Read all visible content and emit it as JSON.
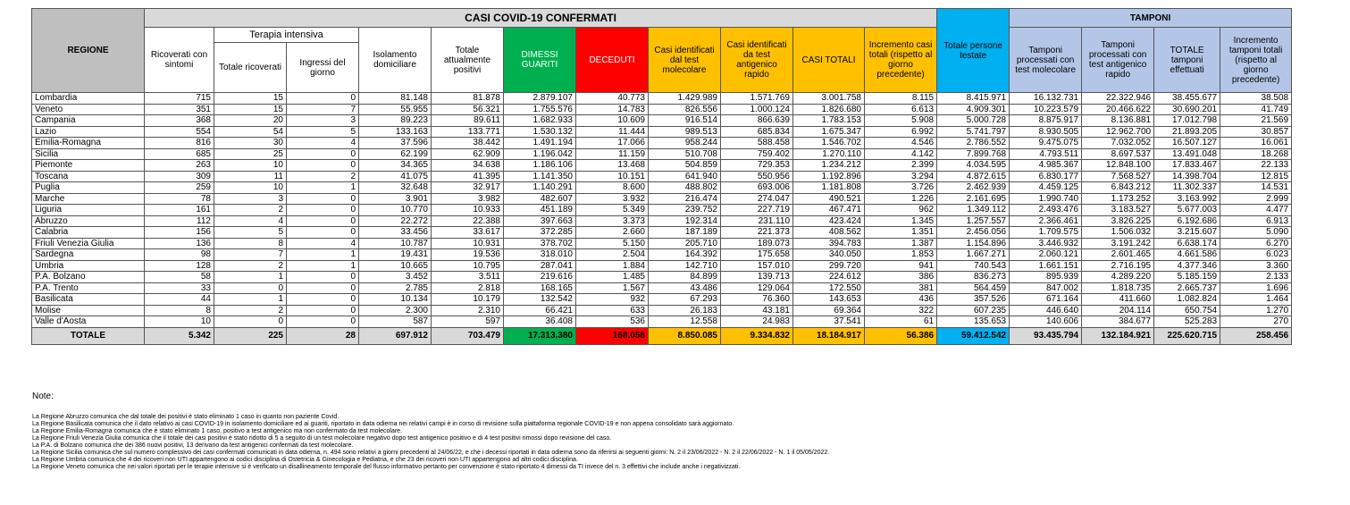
{
  "header": {
    "title": "CASI COVID-19 CONFERMATI",
    "tamponi": "TAMPONI",
    "regione": "REGIONE",
    "ricoverati": "Ricoverati con sintomi",
    "terapia": "Terapia intensiva",
    "totale_ricoverati": "Totale ricoverati",
    "ingressi": "Ingressi del giorno",
    "isolamento": "Isolamento domiciliare",
    "attualmente": "Totale attualmente positivi",
    "dimessi": "DIMESSI GUARITI",
    "deceduti": "DECEDUTI",
    "casi_molecolare": "Casi identificati dal test molecolare",
    "casi_antigenico": "Casi identificati da test antigenico rapido",
    "casi_totali": "CASI TOTALI",
    "incremento": "Incremento casi totali (rispetto al giorno precedente)",
    "persone_testate": "Totale persone testate",
    "tamp_molecolare": "Tamponi processati con test molecolare",
    "tamp_antigenico": "Tamponi processati con test antigenico rapido",
    "tamp_totale": "TOTALE tamponi effettuati",
    "tamp_incremento": "Incremento tamponi totali (rispetto al giorno precedente)"
  },
  "rows": [
    [
      "Lombardia",
      "715",
      "15",
      "0",
      "81.148",
      "81.878",
      "2.879.107",
      "40.773",
      "1.429.989",
      "1.571.769",
      "3.001.758",
      "8.115",
      "8.415.971",
      "16.132.731",
      "22.322.946",
      "38.455.677",
      "38.508"
    ],
    [
      "Veneto",
      "351",
      "15",
      "7",
      "55.955",
      "56.321",
      "1.755.576",
      "14.783",
      "826.556",
      "1.000.124",
      "1.826.680",
      "6.613",
      "4.909.301",
      "10.223.579",
      "20.466.622",
      "30.690.201",
      "41.749"
    ],
    [
      "Campania",
      "368",
      "20",
      "3",
      "89.223",
      "89.611",
      "1.682.933",
      "10.609",
      "916.514",
      "866.639",
      "1.783.153",
      "5.908",
      "5.000.728",
      "8.875.917",
      "8.136.881",
      "17.012.798",
      "21.569"
    ],
    [
      "Lazio",
      "554",
      "54",
      "5",
      "133.163",
      "133.771",
      "1.530.132",
      "11.444",
      "989.513",
      "685.834",
      "1.675.347",
      "6.992",
      "5.741.797",
      "8.930.505",
      "12.962.700",
      "21.893.205",
      "30.857"
    ],
    [
      "Emilia-Romagna",
      "816",
      "30",
      "4",
      "37.596",
      "38.442",
      "1.491.194",
      "17.066",
      "958.244",
      "588.458",
      "1.546.702",
      "4.546",
      "2.786.552",
      "9.475.075",
      "7.032.052",
      "16.507.127",
      "16.061"
    ],
    [
      "Sicilia",
      "685",
      "25",
      "0",
      "62.199",
      "62.909",
      "1.196.042",
      "11.159",
      "510.708",
      "759.402",
      "1.270.110",
      "4.142",
      "7.899.768",
      "4.793.511",
      "8.697.537",
      "13.491.048",
      "18.268"
    ],
    [
      "Piemonte",
      "263",
      "10",
      "0",
      "34.365",
      "34.638",
      "1.186.106",
      "13.468",
      "504.859",
      "729.353",
      "1.234.212",
      "2.399",
      "4.034.595",
      "4.985.367",
      "12.848.100",
      "17.833.467",
      "22.133"
    ],
    [
      "Toscana",
      "309",
      "11",
      "2",
      "41.075",
      "41.395",
      "1.141.350",
      "10.151",
      "641.940",
      "550.956",
      "1.192.896",
      "3.294",
      "4.872.615",
      "6.830.177",
      "7.568.527",
      "14.398.704",
      "12.815"
    ],
    [
      "Puglia",
      "259",
      "10",
      "1",
      "32.648",
      "32.917",
      "1.140.291",
      "8.600",
      "488.802",
      "693.006",
      "1.181.808",
      "3.726",
      "2.462.939",
      "4.459.125",
      "6.843.212",
      "11.302.337",
      "14.531"
    ],
    [
      "Marche",
      "78",
      "3",
      "0",
      "3.901",
      "3.982",
      "482.607",
      "3.932",
      "216.474",
      "274.047",
      "490.521",
      "1.226",
      "2.161.695",
      "1.990.740",
      "1.173.252",
      "3.163.992",
      "2.999"
    ],
    [
      "Liguria",
      "161",
      "2",
      "0",
      "10.770",
      "10.933",
      "451.189",
      "5.349",
      "239.752",
      "227.719",
      "467.471",
      "962",
      "1.349.112",
      "2.493.476",
      "3.183.527",
      "5.677.003",
      "4.477"
    ],
    [
      "Abruzzo",
      "112",
      "4",
      "0",
      "22.272",
      "22.388",
      "397.663",
      "3.373",
      "192.314",
      "231.110",
      "423.424",
      "1.345",
      "1.257.557",
      "2.366.461",
      "3.826.225",
      "6.192.686",
      "6.913"
    ],
    [
      "Calabria",
      "156",
      "5",
      "0",
      "33.456",
      "33.617",
      "372.285",
      "2.660",
      "187.189",
      "221.373",
      "408.562",
      "1.351",
      "2.456.056",
      "1.709.575",
      "1.506.032",
      "3.215.607",
      "5.090"
    ],
    [
      "Friuli Venezia Giulia",
      "136",
      "8",
      "4",
      "10.787",
      "10.931",
      "378.702",
      "5.150",
      "205.710",
      "189.073",
      "394.783",
      "1.387",
      "1.154.896",
      "3.446.932",
      "3.191.242",
      "6.638.174",
      "6.270"
    ],
    [
      "Sardegna",
      "98",
      "7",
      "1",
      "19.431",
      "19.536",
      "318.010",
      "2.504",
      "164.392",
      "175.658",
      "340.050",
      "1.853",
      "1.667.271",
      "2.060.121",
      "2.601.465",
      "4.661.586",
      "6.023"
    ],
    [
      "Umbria",
      "128",
      "2",
      "1",
      "10.665",
      "10.795",
      "287.041",
      "1.884",
      "142.710",
      "157.010",
      "299.720",
      "941",
      "740.543",
      "1.661.151",
      "2.716.195",
      "4.377.346",
      "3.360"
    ],
    [
      "P.A. Bolzano",
      "58",
      "1",
      "0",
      "3.452",
      "3.511",
      "219.616",
      "1.485",
      "84.899",
      "139.713",
      "224.612",
      "386",
      "836.273",
      "895.939",
      "4.289.220",
      "5.185.159",
      "2.133"
    ],
    [
      "P.A. Trento",
      "33",
      "0",
      "0",
      "2.785",
      "2.818",
      "168.165",
      "1.567",
      "43.486",
      "129.064",
      "172.550",
      "381",
      "564.459",
      "847.002",
      "1.818.735",
      "2.665.737",
      "1.696"
    ],
    [
      "Basilicata",
      "44",
      "1",
      "0",
      "10.134",
      "10.179",
      "132.542",
      "932",
      "67.293",
      "76.360",
      "143.653",
      "436",
      "357.526",
      "671.164",
      "411.660",
      "1.082.824",
      "1.464"
    ],
    [
      "Molise",
      "8",
      "2",
      "0",
      "2.300",
      "2.310",
      "66.421",
      "633",
      "26.183",
      "43.181",
      "69.364",
      "322",
      "607.235",
      "446.640",
      "204.114",
      "650.754",
      "1.270"
    ],
    [
      "Valle d'Aosta",
      "10",
      "0",
      "0",
      "587",
      "597",
      "36.408",
      "536",
      "12.558",
      "24.983",
      "37.541",
      "61",
      "135.653",
      "140.606",
      "384.677",
      "525.283",
      "270"
    ]
  ],
  "totals": [
    "TOTALE",
    "5.342",
    "225",
    "28",
    "697.912",
    "703.479",
    "17.313.380",
    "168.058",
    "8.850.085",
    "9.334.832",
    "18.184.917",
    "56.386",
    "59.412.542",
    "93.435.794",
    "132.184.921",
    "225.620.715",
    "258.456"
  ],
  "notes": {
    "title": "Note:",
    "lines": [
      "La Regione Abruzzo  comunica che dal totale dei positivi è stato eliminato 1 caso in quanto non paziente Covid.",
      "La Regione Basilicata comunica che il dato relativo ai casi COVID-19 in isolamento domiciliare ed ai guariti, riportato in data odierna nei relativi campi è in corso di revisione sulla piattaforma regionale COVID-19 e non appena consolidato sarà aggiornato.",
      "La Regione Emilia-Romagna  comunica che è stato eliminato 1 caso, positivo a test antigenico ma non confermato da test molecolare.",
      "La Regione Friuli Venezia Giulia comunica che il totale dei casi positivi è stato ridotto di 5 a seguito di un test molecolare negativo dopo test antigenico positivo  e di 4 test positivi rimossi dopo revisione del caso.",
      "La P.A. di Bolzano comunica che dei 386 nuovi positivi, 13 derivano da test antigenici confermati da test molecolare.",
      "La Regione Sicilia comunica che sul numero complessivo dei casi confermati comunicati in data odierna, n. 494 sono relativi a giorni precedenti al 24/06/22, e che i decessi riportati in data odierna sono da riferirsi ai seguenti giorni: N. 2 il 23/06/2022 - N. 2 il 22/06/2022 - N. 1 il 05/05/2022.",
      "La Regione Umbria comunica che 4 dei ricoveri non UTI appartengono ai codici disciplina di Ostetricia & Ginecologia e Pediatria, e che 23 dei ricoveri non UTI appartengono ad altri codici disciplina.",
      "La Regione Veneto comunica che nei valori riportati per le terapie intensive si è verificato un disallineamento temporale del flusso informativo pertanto per convenzione è stato riportato 4 dimessi da TI invece del n. 3 effettivi che include anche i negativizzati."
    ]
  },
  "colors": {
    "header_grey": "#bfbfbf",
    "title_grey": "#d9d9d9",
    "dimessi_green": "#00b050",
    "deceduti_red": "#ff0000",
    "casi_orange": "#ffc000",
    "persone_blue": "#00b0f0",
    "tamponi_lightblue": "#b4c6e7"
  }
}
